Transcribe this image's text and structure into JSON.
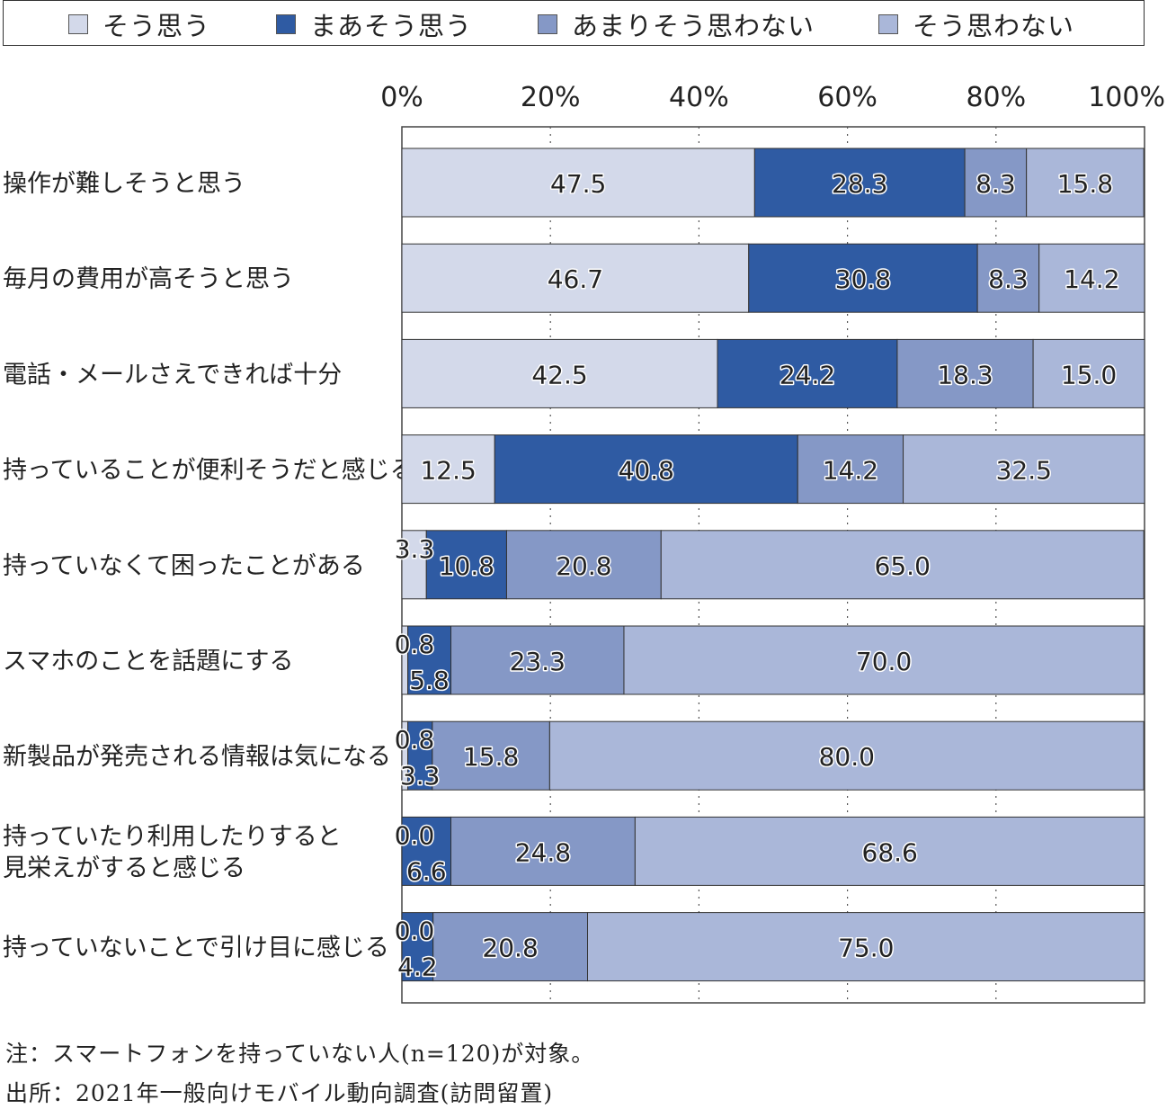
{
  "legend": {
    "items": [
      {
        "label": "そう思う",
        "color": "#d3d9ea"
      },
      {
        "label": "まあそう思う",
        "color": "#2f5ba3"
      },
      {
        "label": "あまりそう思わない",
        "color": "#8598c6"
      },
      {
        "label": "そう思わない",
        "color": "#aab7d9"
      }
    ]
  },
  "chart_data": {
    "type": "bar",
    "orientation": "horizontal",
    "stacked": true,
    "xlim": [
      0,
      100
    ],
    "x_ticks": [
      "0%",
      "20%",
      "40%",
      "60%",
      "80%",
      "100%"
    ],
    "x_tick_values": [
      0,
      20,
      40,
      60,
      80,
      100
    ],
    "grid": "vertical-dotted",
    "legend_position": "top",
    "categories": [
      [
        "操作が難しそうと思う"
      ],
      [
        "毎月の費用が高そうと思う"
      ],
      [
        "電話・メールさえできれば十分"
      ],
      [
        "持っていることが便利そうだと感じる"
      ],
      [
        "持っていなくて困ったことがある"
      ],
      [
        "スマホのことを話題にする"
      ],
      [
        "新製品が発売される情報は気になる"
      ],
      [
        "持っていたり利用したりすると",
        "見栄えがすると感じる"
      ],
      [
        "持っていないことで引け目に感じる"
      ]
    ],
    "series": [
      {
        "name": "そう思う",
        "color": "#d3d9ea",
        "values": [
          47.5,
          46.7,
          42.5,
          12.5,
          3.3,
          0.8,
          0.8,
          0.0,
          0.0
        ]
      },
      {
        "name": "まあそう思う",
        "color": "#2f5ba3",
        "values": [
          28.3,
          30.8,
          24.2,
          40.8,
          10.8,
          5.8,
          3.3,
          6.6,
          4.2
        ]
      },
      {
        "name": "あまりそう思わない",
        "color": "#8598c6",
        "values": [
          8.3,
          8.3,
          18.3,
          14.2,
          20.8,
          23.3,
          15.8,
          24.8,
          20.8
        ]
      },
      {
        "name": "そう思わない",
        "color": "#aab7d9",
        "values": [
          15.8,
          14.2,
          15.0,
          32.5,
          65.0,
          70.0,
          80.0,
          68.6,
          75.0
        ]
      }
    ],
    "value_labels": [
      [
        "47.5",
        "28.3",
        "8.3",
        "15.8"
      ],
      [
        "46.7",
        "30.8",
        "8.3",
        "14.2"
      ],
      [
        "42.5",
        "24.2",
        "18.3",
        "15.0"
      ],
      [
        "12.5",
        "40.8",
        "14.2",
        "32.5"
      ],
      [
        "3.3",
        "10.8",
        "20.8",
        "65.0"
      ],
      [
        "0.8",
        "5.8",
        "23.3",
        "70.0"
      ],
      [
        "0.8",
        "3.3",
        "15.8",
        "80.0"
      ],
      [
        "0.0",
        "6.6",
        "24.8",
        "68.6"
      ],
      [
        "0.0",
        "4.2",
        "20.8",
        "75.0"
      ]
    ]
  },
  "notes": {
    "note": "注：スマートフォンを持っていない人(n=120)が対象。",
    "source": "出所：2021年一般向けモバイル動向調査(訪問留置)"
  }
}
